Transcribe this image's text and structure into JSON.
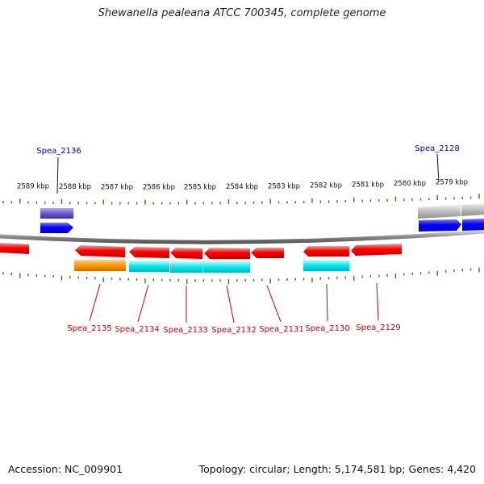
{
  "title": "Shewanella pealeana ATCC 700345, complete genome",
  "accession": "Accession: NC_009901",
  "summary": "Topology: circular; Length: 5,174,581 bp; Genes: 4,420",
  "kbp_labels": [
    "2589 kbp",
    "2588 kbp",
    "2587 kbp",
    "2586 kbp",
    "2585 kbp",
    "2584 kbp",
    "2583 kbp",
    "2582 kbp",
    "2581 kbp",
    "2580 kbp",
    "2579 kbp"
  ],
  "upper_genes": [
    "Spea_2136",
    "Spea_2128"
  ],
  "lower_genes": [
    "Spea_2135",
    "Spea_2134",
    "Spea_2133",
    "Spea_2132",
    "Spea_2131",
    "Spea_2130",
    "Spea_2129"
  ],
  "colors": {
    "forward_gene": "#0000ff",
    "reverse_gene": "#ff0000",
    "upper_label": "#0000a0",
    "lower_label": "#cc0000",
    "tick": "#2e7d1a",
    "backbone": "#8a8a8a",
    "cds_cyan": "#00e5ee",
    "cds_orange": "#ff9900",
    "cds_grey": "#bdbdbd",
    "cds_purple": "#6a5acd"
  }
}
